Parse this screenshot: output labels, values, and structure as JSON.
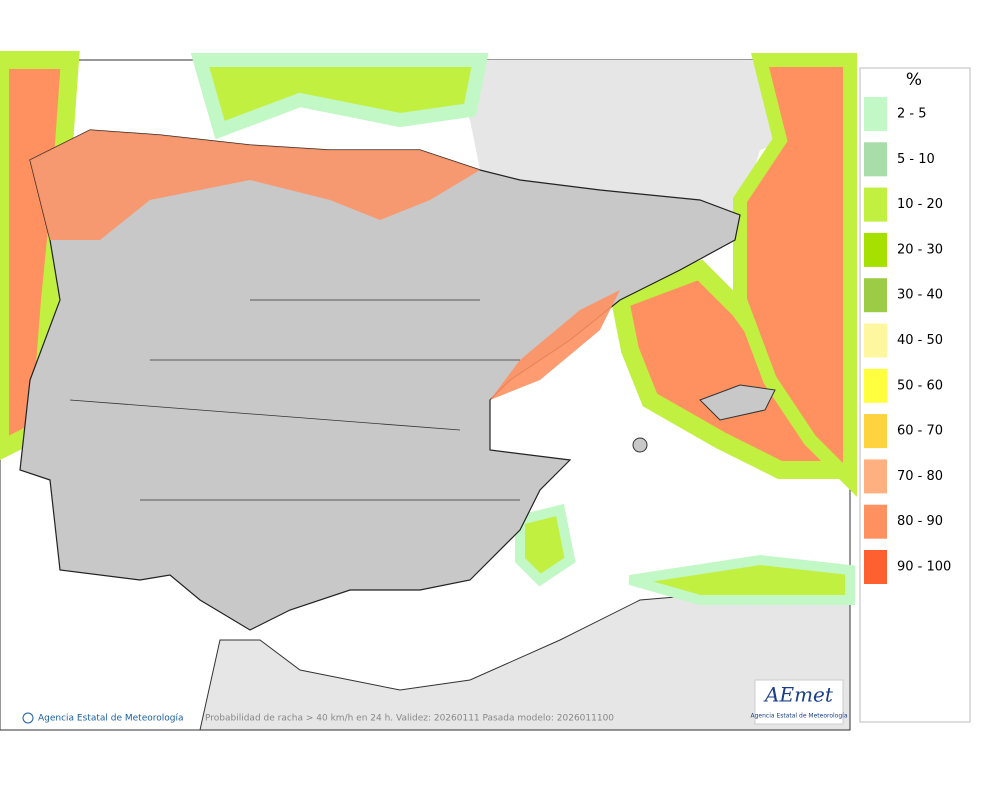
{
  "map": {
    "caption": "Probabilidad de racha > 40 km/h en 24 h. Validez: 20260111 Pasada modelo: 2026011100",
    "credit": "Agencia Estatal de Meteorología",
    "logo": {
      "name": "AEmet",
      "subtitle": "Agencia Estatal de Meteorología"
    }
  },
  "legend": {
    "title": "%",
    "items": [
      {
        "label": "2 - 5",
        "color": "#c2f7c6"
      },
      {
        "label": "5 - 10",
        "color": "#a8dca8"
      },
      {
        "label": "10 - 20",
        "color": "#c2f040"
      },
      {
        "label": "20 - 30",
        "color": "#a6e000"
      },
      {
        "label": "30 - 40",
        "color": "#9ccc46"
      },
      {
        "label": "40 - 50",
        "color": "#fff7a0"
      },
      {
        "label": "50 - 60",
        "color": "#ffff40"
      },
      {
        "label": "60 - 70",
        "color": "#ffd240"
      },
      {
        "label": "70 - 80",
        "color": "#ffb080"
      },
      {
        "label": "80 - 90",
        "color": "#ff9060"
      },
      {
        "label": "90 - 100",
        "color": "#ff6030"
      }
    ]
  }
}
